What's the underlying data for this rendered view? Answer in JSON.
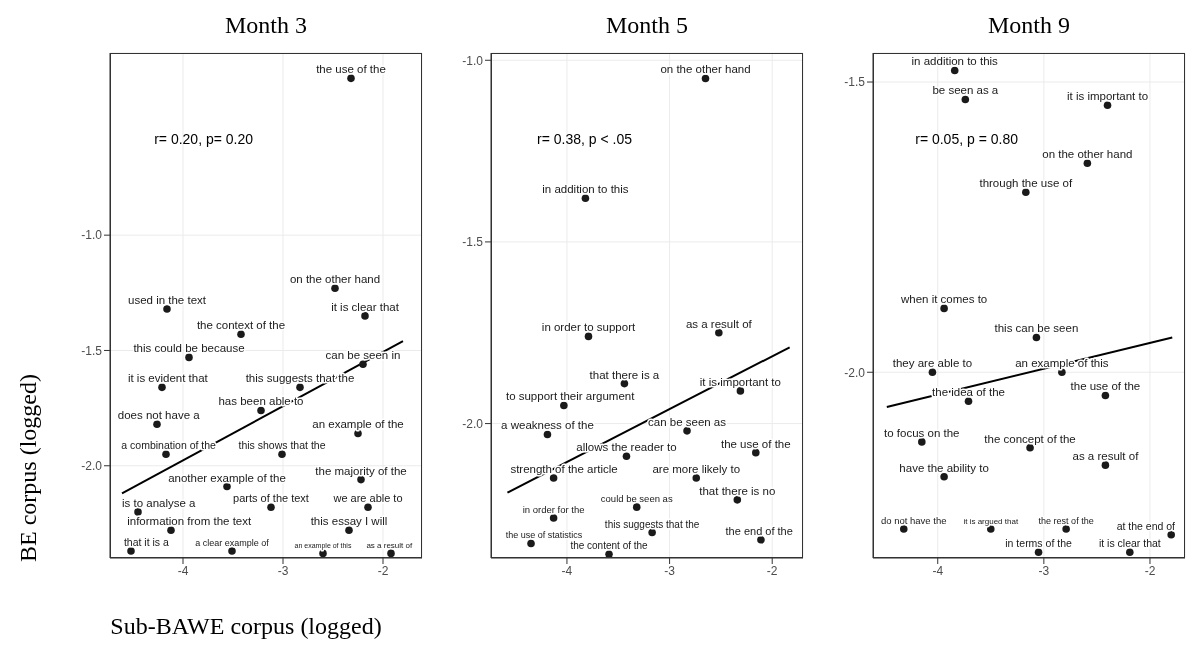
{
  "chart_data": [
    {
      "type": "scatter",
      "title": "Month 3",
      "xlabel": "Sub-BAWE corpus (logged)",
      "ylabel": "BE corpus (logged)",
      "annotations": [
        "r= 0.20, p= 0.20"
      ],
      "xlim": [
        -4.73,
        -1.61
      ],
      "ylim": [
        -2.4,
        -0.21
      ],
      "xticks": [
        -4,
        -3,
        -2
      ],
      "yticks": [
        {
          "value": -1.0,
          "label": "-1.0"
        },
        {
          "value": -1.5,
          "label": "-1.5"
        },
        {
          "value": -2.0,
          "label": "-2.0"
        }
      ],
      "grid": true,
      "marker": "circle",
      "series": [
        {
          "type": "scatter",
          "color": "#1a1a1a",
          "x": [
            -2.32,
            -2.48,
            -4.16,
            -2.18,
            -3.42,
            -3.94,
            -2.2,
            -4.21,
            -2.83,
            -3.22,
            -4.26,
            -2.25,
            -4.17,
            -3.01,
            -3.56,
            -2.22,
            -3.12,
            -2.15,
            -4.45,
            -4.12,
            -2.34,
            -4.52,
            -3.51,
            -2.6,
            -1.92
          ],
          "values": [
            -0.32,
            -1.23,
            -1.32,
            -1.35,
            -1.43,
            -1.53,
            -1.56,
            -1.66,
            -1.66,
            -1.76,
            -1.82,
            -1.86,
            -1.95,
            -1.95,
            -2.09,
            -2.06,
            -2.18,
            -2.18,
            -2.2,
            -2.28,
            -2.28,
            -2.37,
            -2.37,
            -2.38,
            -2.38
          ],
          "value_labels": [
            "the use of the",
            "on the other hand",
            "used in the text",
            "it is clear that",
            "the context of the",
            "this could be because",
            "can be seen in",
            "it is evident that",
            "this suggests that the",
            "has been able to",
            "does not have a",
            "an example of the",
            "a combination of the",
            "this shows that the",
            "another example of the",
            "the majority of the",
            "parts of the text",
            "we are able to",
            "is to analyse a",
            "information from the text",
            "this essay I will",
            "that it is a",
            "a clear example of",
            "an example of this",
            "as a result of"
          ]
        },
        {
          "type": "line",
          "color": "#000000",
          "marker": "none",
          "x": [
            -4.61,
            -1.8
          ],
          "values": [
            -2.12,
            -1.46
          ]
        }
      ]
    },
    {
      "type": "scatter",
      "title": "Month 5",
      "annotations": [
        "r= 0.38, p < .05"
      ],
      "xlim": [
        -4.74,
        -1.7
      ],
      "ylim": [
        -2.37,
        -0.98
      ],
      "xticks": [
        -4,
        -3,
        -2
      ],
      "yticks": [
        {
          "value": -1.0,
          "label": "-1.0"
        },
        {
          "value": -1.5,
          "label": "-1.5"
        },
        {
          "value": -2.0,
          "label": "-2.0"
        }
      ],
      "grid": true,
      "marker": "circle",
      "series": [
        {
          "type": "scatter",
          "color": "#1a1a1a",
          "x": [
            -2.65,
            -3.82,
            -3.79,
            -2.52,
            -3.44,
            -2.31,
            -4.03,
            -4.19,
            -2.83,
            -3.42,
            -2.16,
            -4.13,
            -2.74,
            -2.34,
            -3.32,
            -4.13,
            -3.17,
            -2.11,
            -4.35,
            -3.59
          ],
          "values": [
            -1.05,
            -1.38,
            -1.76,
            -1.75,
            -1.89,
            -1.91,
            -1.95,
            -2.03,
            -2.02,
            -2.09,
            -2.08,
            -2.15,
            -2.15,
            -2.21,
            -2.23,
            -2.26,
            -2.3,
            -2.32,
            -2.33,
            -2.36
          ],
          "value_labels": [
            "on the other hand",
            "in addition to this",
            "in order to support",
            "as a result of",
            "that there is a",
            "it is important to",
            "to support their argument",
            "a weakness of the",
            "can be seen as",
            "allows the reader to",
            "the use of the",
            "strength of the article",
            "are more likely to",
            "that there is no",
            "could be seen as",
            "in order for the",
            "this suggests that the",
            "the end of the",
            "the use of statistics",
            "the content of the"
          ]
        },
        {
          "type": "line",
          "color": "#000000",
          "marker": "none",
          "x": [
            -4.58,
            -1.83
          ],
          "values": [
            -2.19,
            -1.79
          ]
        }
      ]
    },
    {
      "type": "scatter",
      "title": "Month 9",
      "annotations": [
        "r= 0.05, p = 0.80"
      ],
      "xlim": [
        -4.61,
        -1.67
      ],
      "ylim": [
        -2.32,
        -1.45
      ],
      "xticks": [
        -4,
        -3,
        -2
      ],
      "yticks": [
        {
          "value": -1.5,
          "label": "-1.5"
        },
        {
          "value": -2.0,
          "label": "-2.0"
        }
      ],
      "grid": true,
      "marker": "circle",
      "series": [
        {
          "type": "scatter",
          "color": "#1a1a1a",
          "x": [
            -3.84,
            -3.74,
            -2.4,
            -2.59,
            -3.17,
            -3.94,
            -3.07,
            -4.05,
            -2.83,
            -3.71,
            -2.42,
            -4.15,
            -3.13,
            -3.94,
            -2.42,
            -4.32,
            -3.5,
            -2.79,
            -1.8,
            -3.05,
            -2.19
          ],
          "values": [
            -1.48,
            -1.53,
            -1.54,
            -1.64,
            -1.69,
            -1.89,
            -1.94,
            -2.0,
            -2.0,
            -2.05,
            -2.04,
            -2.12,
            -2.13,
            -2.18,
            -2.16,
            -2.27,
            -2.27,
            -2.27,
            -2.28,
            -2.31,
            -2.31
          ],
          "value_labels": [
            "in addition to this",
            "be seen as a",
            "it is important to",
            "on the other hand",
            "through the use of",
            "when it comes to",
            "this can be seen",
            "they are able to",
            "an example of this",
            "the idea of the",
            "the use of the",
            "to focus on the",
            "the concept of the",
            "have the ability to",
            "as a result of",
            "do not have the",
            "it is argued that",
            "the rest of the",
            "at the end of",
            "in terms of the",
            "it is clear that"
          ]
        },
        {
          "type": "line",
          "color": "#000000",
          "marker": "none",
          "x": [
            -4.48,
            -1.79
          ],
          "values": [
            -2.06,
            -1.94
          ]
        }
      ]
    }
  ]
}
